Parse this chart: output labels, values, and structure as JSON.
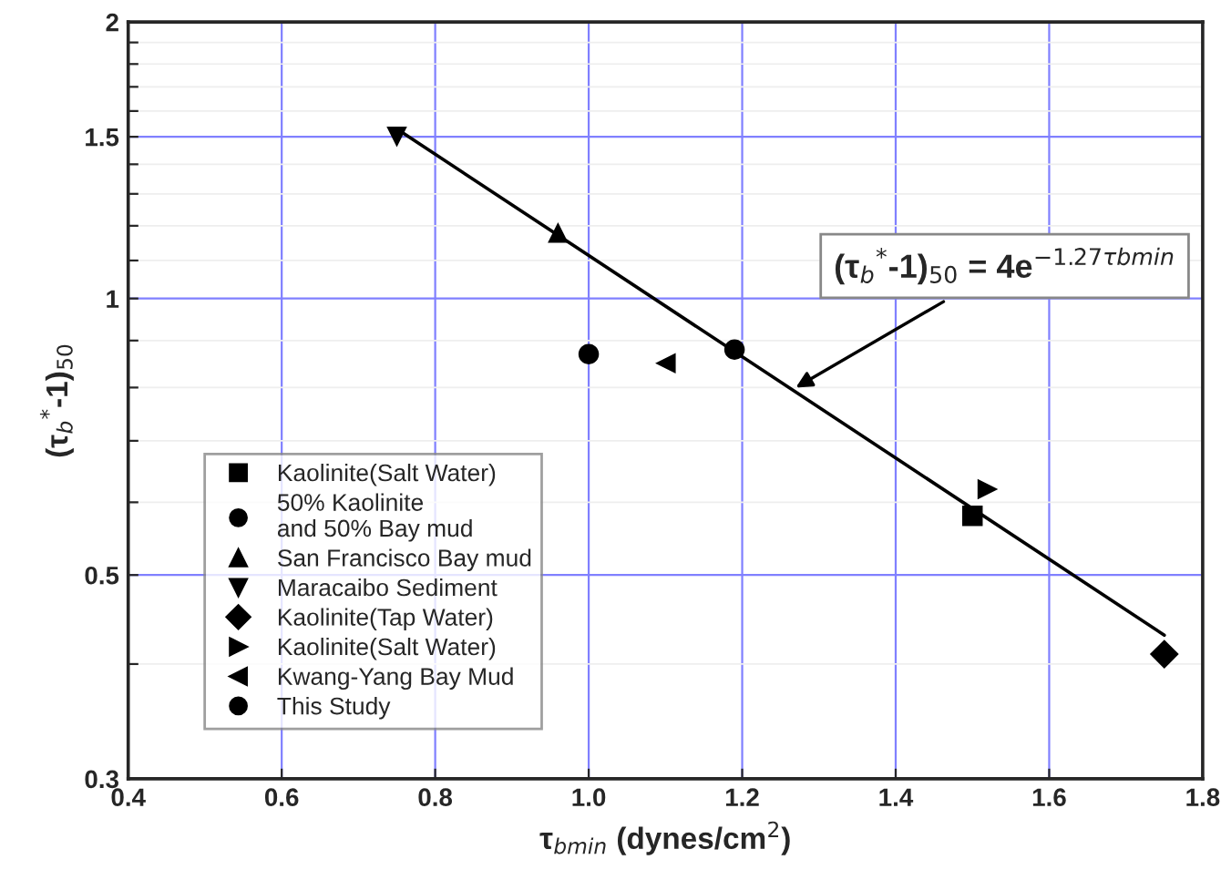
{
  "chart_data": {
    "type": "scatter",
    "xlabel": "τ$_{bmin}$ (dynes/cm$^{2}$)",
    "ylabel": "(τ$_{b}$$^{*}$-1)$_{50}$",
    "xlim": [
      0.4,
      1.8
    ],
    "xticks": [
      0.4,
      0.6,
      0.8,
      {
        "value": 1.0,
        "label": "1.0"
      },
      1.2,
      1.4,
      1.6,
      1.8
    ],
    "ylim": [
      0.3,
      2
    ],
    "log": "y",
    "yticks": [
      0.3,
      {
        "value": 0.4,
        "label": null
      },
      0.5,
      {
        "value": 0.6,
        "label": null
      },
      {
        "value": 0.7,
        "label": null
      },
      {
        "value": 0.8,
        "label": null
      },
      {
        "value": 0.9,
        "label": null
      },
      1,
      {
        "value": 1.1,
        "label": null
      },
      {
        "value": 1.2,
        "label": null
      },
      {
        "value": 1.3,
        "label": null
      },
      {
        "value": 1.4,
        "label": null
      },
      1.5,
      {
        "value": 1.6,
        "label": null
      },
      {
        "value": 1.7,
        "label": null
      },
      {
        "value": 1.8,
        "label": null
      },
      {
        "value": 1.9,
        "label": null
      },
      2
    ],
    "grid": true,
    "legend": "bottom left",
    "series": [
      {
        "name": "Kaolinite(Salt Water)",
        "color": "#000000",
        "marker": "square",
        "x": [
          1.5
        ],
        "values": [
          0.58
        ]
      },
      {
        "name": "50% Kaolinite\nand 50% Bay mud",
        "color": "#000000",
        "marker": "circle",
        "x": [
          1.19
        ],
        "values": [
          0.88
        ]
      },
      {
        "name": "San Francisco Bay mud",
        "color": "#000000",
        "marker": "triangle",
        "x": [
          0.96
        ],
        "values": [
          1.18
        ]
      },
      {
        "name": "Maracaibo Sediment",
        "color": "#000000",
        "marker": "triangle_down",
        "x": [
          0.75
        ],
        "values": [
          1.5
        ]
      },
      {
        "name": "Kaolinite(Tap Water)",
        "color": "#000000",
        "marker": "diamond",
        "x": [
          1.75
        ],
        "values": [
          0.41
        ]
      },
      {
        "name": "Kaolinite(Salt Water)",
        "color": "#000000",
        "marker": "triangle_right",
        "x": [
          1.52
        ],
        "values": [
          0.62
        ]
      },
      {
        "name": "Kwang-Yang Bay Mud",
        "color": "#000000",
        "marker": "triangle_left",
        "x": [
          1.1
        ],
        "values": [
          0.85
        ]
      },
      {
        "name": "This Study",
        "color": "#000000",
        "marker": "circle",
        "x": [
          1.0
        ],
        "values": [
          0.87
        ]
      },
      {
        "type": "line",
        "color": "#000000",
        "marker": "none",
        "x": [
          0.75,
          1.75
        ],
        "values": [
          1.53,
          0.43
        ]
      }
    ],
    "annotations": [
      {
        "text": "(τ$_{b}$$^{*}$-1)$_{50}$ = 4e$^{−1.27τbmin}$",
        "x": 1.27,
        "y": 0.8
      }
    ]
  }
}
